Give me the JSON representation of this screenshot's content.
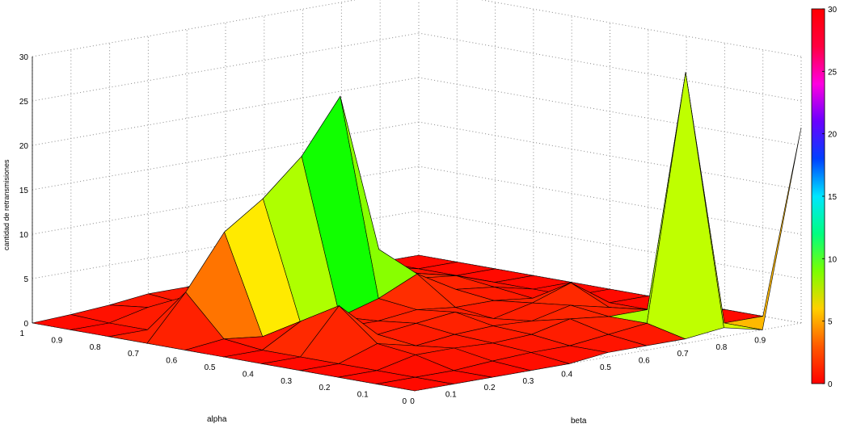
{
  "chart_data": {
    "type": "surface",
    "xlabel": "beta",
    "ylabel": "alpha",
    "zlabel": "cantidad de retransmisiones",
    "z_ticks": [
      "0",
      "5",
      "10",
      "15",
      "20",
      "25",
      "30"
    ],
    "beta_ticks": [
      "0",
      "0.1",
      "0.2",
      "0.3",
      "0.4",
      "0.5",
      "0.6",
      "0.7",
      "0.8",
      "0.9"
    ],
    "alpha_ticks": [
      "0",
      "0.1",
      "0.2",
      "0.3",
      "0.4",
      "0.5",
      "0.6",
      "0.7",
      "0.8",
      "0.9",
      "1"
    ],
    "zlim": [
      0,
      30
    ],
    "grid": true,
    "colormap": "hsv",
    "colorbar": {
      "placement": "right",
      "range": [
        0,
        30
      ],
      "ticks": [
        "0",
        "5",
        "10",
        "15",
        "20",
        "25",
        "30"
      ],
      "colors": [
        "#ff0000",
        "#ff5a00",
        "#ffd000",
        "#7bff00",
        "#00ff80",
        "#00e6ff",
        "#0040ff",
        "#6a00ff",
        "#ff00e0",
        "#ff0040",
        "#ff0000"
      ]
    },
    "beta": [
      0,
      0.1,
      0.2,
      0.3,
      0.4,
      0.5,
      0.6,
      0.7,
      0.8,
      0.9,
      1
    ],
    "alpha": [
      0,
      0.1,
      0.2,
      0.3,
      0.4,
      0.5,
      0.6,
      0.7,
      0.8,
      0.9,
      1
    ],
    "z": [
      [
        0,
        0,
        0,
        0,
        0,
        0.5,
        0.5,
        0.5,
        1,
        0,
        22
      ],
      [
        0,
        0,
        0,
        0.3,
        0.5,
        0.5,
        1,
        1.5,
        29,
        0,
        0
      ],
      [
        0,
        0,
        1,
        1,
        0.8,
        1,
        2,
        1.5,
        1.5,
        0,
        0
      ],
      [
        0,
        0,
        1.5,
        0.5,
        1,
        1.2,
        1,
        2,
        1,
        0,
        0
      ],
      [
        0,
        0,
        5,
        1,
        1.5,
        2,
        0.5,
        1.5,
        3,
        0,
        0
      ],
      [
        0,
        0,
        2.5,
        1,
        1,
        1.5,
        1,
        1,
        0.5,
        0,
        0
      ],
      [
        0,
        0.5,
        0,
        0.5,
        0.7,
        2,
        4,
        1.5,
        1,
        0,
        0
      ],
      [
        0,
        5,
        11,
        14,
        18,
        24,
        6,
        2,
        1.5,
        0,
        0
      ],
      [
        0,
        0,
        3,
        1,
        0.5,
        0.8,
        0.5,
        3,
        1,
        0,
        0
      ],
      [
        0,
        0,
        1,
        0.6,
        0.8,
        1,
        1,
        1,
        1,
        0,
        0
      ],
      [
        0,
        0.2,
        0.5,
        1,
        1,
        1.5,
        1.5,
        2,
        1,
        0,
        0
      ]
    ]
  }
}
